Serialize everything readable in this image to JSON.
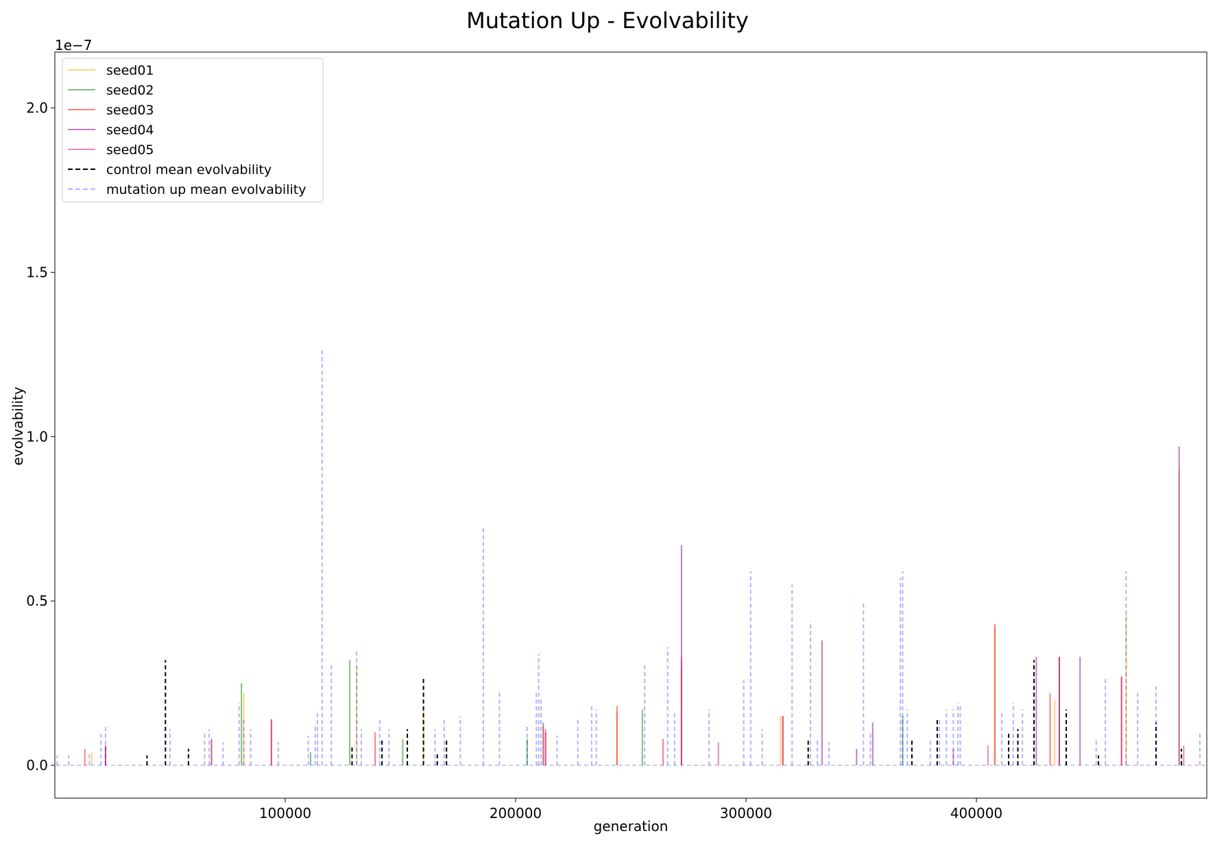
{
  "chart_data": {
    "type": "line",
    "title": "Mutation Up - Evolvability",
    "xlabel": "generation",
    "ylabel": "evolvability",
    "y_scale_label": "1e−7",
    "xlim": [
      0,
      500000
    ],
    "ylim": [
      -0.1,
      2.17
    ],
    "x_ticks": [
      100000,
      200000,
      300000,
      400000
    ],
    "y_ticks": [
      0.0,
      0.5,
      1.0,
      1.5,
      2.0
    ],
    "x_tick_labels": [
      "100000",
      "200000",
      "300000",
      "400000"
    ],
    "y_tick_labels": [
      "0.0",
      "0.5",
      "1.0",
      "1.5",
      "2.0"
    ],
    "grid": false,
    "legend_position": "top-left",
    "series": [
      {
        "name": "seed01",
        "color": "#ffa500",
        "style": "solid",
        "opacity": 0.5,
        "x": [
          16000,
          68000,
          82000,
          131000,
          160000,
          212000,
          244000,
          272000,
          315000,
          408000,
          434000,
          465000,
          488000
        ],
        "y": [
          0.04,
          0.08,
          0.22,
          0.3,
          0.18,
          0.12,
          0.16,
          0.3,
          0.15,
          0.42,
          0.2,
          0.46,
          0.9
        ]
      },
      {
        "name": "seed02",
        "color": "#008000",
        "style": "solid",
        "opacity": 0.5,
        "x": [
          81000,
          111000,
          128000,
          151000,
          205000,
          255000,
          368000
        ],
        "y": [
          0.25,
          0.04,
          0.32,
          0.08,
          0.08,
          0.17,
          0.15
        ]
      },
      {
        "name": "seed03",
        "color": "#ff0000",
        "style": "solid",
        "opacity": 0.5,
        "x": [
          13000,
          22000,
          94000,
          139000,
          213000,
          244000,
          264000,
          316000,
          408000,
          432000,
          436000,
          463000
        ],
        "y": [
          0.05,
          0.06,
          0.14,
          0.1,
          0.1,
          0.18,
          0.08,
          0.15,
          0.43,
          0.22,
          0.33,
          0.27
        ]
      },
      {
        "name": "seed04",
        "color": "#800080",
        "style": "solid",
        "opacity": 0.5,
        "x": [
          68000,
          212000,
          272000,
          333000,
          348000,
          355000,
          426000,
          436000,
          445000,
          488000
        ],
        "y": [
          0.08,
          0.13,
          0.67,
          0.38,
          0.05,
          0.13,
          0.33,
          0.33,
          0.33,
          0.97
        ]
      },
      {
        "name": "seed05",
        "color": "#c71585",
        "style": "solid",
        "opacity": 0.5,
        "x": [
          22000,
          94000,
          213000,
          272000,
          288000,
          316000,
          390000,
          405000,
          463000,
          490000
        ],
        "y": [
          0.06,
          0.14,
          0.11,
          0.33,
          0.07,
          0.15,
          0.05,
          0.06,
          0.27,
          0.06
        ]
      },
      {
        "name": "control mean evolvability",
        "color": "#000000",
        "style": "dashed",
        "opacity": 1,
        "x": [
          40000,
          48000,
          58000,
          129000,
          142000,
          153000,
          160000,
          166000,
          170000,
          327000,
          372000,
          383000,
          414000,
          418000,
          425000,
          439000,
          453000,
          478000,
          489000
        ],
        "y": [
          0.03,
          0.32,
          0.05,
          0.06,
          0.08,
          0.11,
          0.27,
          0.04,
          0.08,
          0.08,
          0.08,
          0.14,
          0.1,
          0.11,
          0.32,
          0.17,
          0.03,
          0.13,
          0.05
        ]
      },
      {
        "name": "mutation up mean evolvability",
        "color": "#0000ff",
        "style": "dashed",
        "opacity": 0.3,
        "x": [
          1000,
          6000,
          15000,
          20000,
          22000,
          50000,
          65000,
          67000,
          73000,
          80000,
          82000,
          85000,
          97000,
          110000,
          113000,
          114000,
          116000,
          120000,
          131000,
          133000,
          141000,
          145000,
          165000,
          169000,
          176000,
          186000,
          193000,
          205000,
          209000,
          210000,
          211000,
          218000,
          227000,
          233000,
          235000,
          256000,
          266000,
          269000,
          284000,
          299000,
          302000,
          307000,
          320000,
          328000,
          331000,
          336000,
          351000,
          354000,
          367000,
          368000,
          370000,
          380000,
          384000,
          387000,
          390000,
          392000,
          393000,
          411000,
          416000,
          420000,
          452000,
          456000,
          465000,
          470000,
          478000,
          497000
        ],
        "y": [
          0.03,
          0.03,
          0.04,
          0.1,
          0.12,
          0.11,
          0.1,
          0.11,
          0.07,
          0.19,
          0.14,
          0.11,
          0.07,
          0.09,
          0.12,
          0.16,
          1.27,
          0.31,
          0.35,
          0.11,
          0.14,
          0.11,
          0.11,
          0.14,
          0.15,
          0.73,
          0.23,
          0.12,
          0.22,
          0.34,
          0.2,
          0.09,
          0.14,
          0.18,
          0.17,
          0.31,
          0.36,
          0.16,
          0.17,
          0.26,
          0.59,
          0.11,
          0.55,
          0.44,
          0.08,
          0.07,
          0.5,
          0.1,
          0.57,
          0.59,
          0.17,
          0.08,
          0.14,
          0.17,
          0.17,
          0.19,
          0.18,
          0.16,
          0.19,
          0.17,
          0.08,
          0.27,
          0.59,
          0.23,
          0.24,
          0.1
        ]
      }
    ]
  }
}
